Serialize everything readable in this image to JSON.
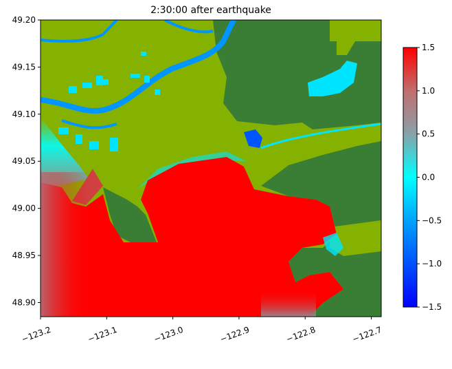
{
  "chart_data": {
    "type": "heatmap",
    "title": "2:30:00 after earthquake",
    "xlabel": "",
    "ylabel": "",
    "xlim": [
      -123.2,
      -122.685
    ],
    "ylim": [
      48.885,
      49.2
    ],
    "xticks": [
      -123.2,
      -123.1,
      -123.0,
      -122.9,
      -122.8,
      -122.7
    ],
    "xtick_labels": [
      "−123.2",
      "−123.1",
      "−123.0",
      "−122.9",
      "−122.8",
      "−122.7"
    ],
    "yticks": [
      49.2,
      49.15,
      49.1,
      49.05,
      49.0,
      48.95,
      48.9
    ],
    "ytick_labels": [
      "49.20",
      "49.15",
      "49.10",
      "49.05",
      "49.00",
      "48.95",
      "48.90"
    ],
    "colorbar": {
      "range": [
        -1.5,
        1.5
      ],
      "ticks": [
        1.5,
        1.0,
        0.5,
        0.0,
        -0.5,
        -1.0,
        -1.5
      ],
      "tick_labels": [
        "1.5",
        "1.0",
        "0.5",
        "0.0",
        "−0.5",
        "−1.0",
        "−1.5"
      ],
      "colors": [
        "#0000ff",
        "#00a0ff",
        "#00ffff",
        "#8aa0a8",
        "#c07070",
        "#ff0000"
      ]
    },
    "colors": {
      "land_low": "#85b200",
      "land_high": "#3a7d34",
      "river": "#0095ff",
      "flooded": "#00e5ff",
      "surge": "#ff0000"
    }
  }
}
